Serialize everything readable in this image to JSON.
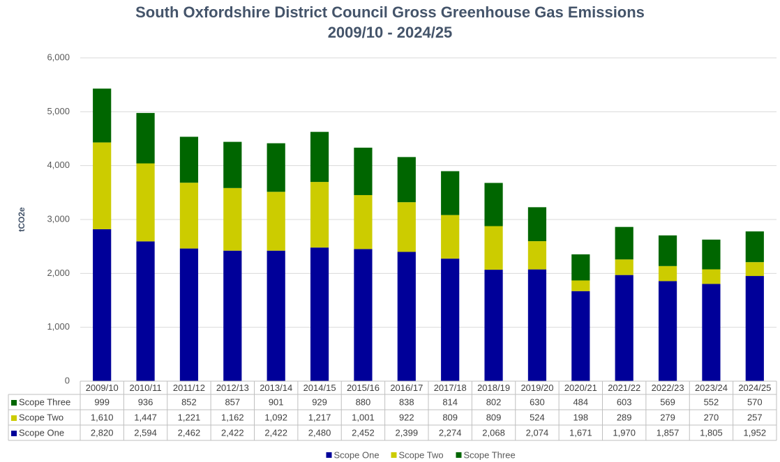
{
  "chart_data": {
    "type": "stacked_bar",
    "title": "South Oxfordshire District Council Gross Greenhouse Gas Emissions",
    "subtitle": "2009/10 - 2024/25",
    "y_label": "tCO2e",
    "categories": [
      "2009/10",
      "2010/11",
      "2011/12",
      "2012/13",
      "2013/14",
      "2014/15",
      "2015/16",
      "2016/17",
      "2017/18",
      "2018/19",
      "2019/20",
      "2020/21",
      "2021/22",
      "2022/23",
      "2023/24",
      "2024/25"
    ],
    "series": [
      {
        "name": "Scope One",
        "color": "#000099",
        "values": [
          2820,
          2594,
          2462,
          2422,
          2422,
          2480,
          2452,
          2399,
          2274,
          2068,
          2074,
          1671,
          1970,
          1857,
          1805,
          1952
        ],
        "value_labels": [
          "2,820",
          "2,594",
          "2,462",
          "2,422",
          "2,422",
          "2,480",
          "2,452",
          "2,399",
          "2,274",
          "2,068",
          "2,074",
          "1,671",
          "1,970",
          "1,857",
          "1,805",
          "1,952"
        ]
      },
      {
        "name": "Scope Two",
        "color": "#cccc00",
        "values": [
          1610,
          1447,
          1221,
          1162,
          1092,
          1217,
          1001,
          922,
          809,
          809,
          524,
          198,
          289,
          279,
          270,
          257
        ],
        "value_labels": [
          "1,610",
          "1,447",
          "1,221",
          "1,162",
          "1,092",
          "1,217",
          "1,001",
          "922",
          "809",
          "809",
          "524",
          "198",
          "289",
          "279",
          "270",
          "257"
        ]
      },
      {
        "name": "Scope Three",
        "color": "#006600",
        "values": [
          999,
          936,
          852,
          857,
          901,
          929,
          880,
          838,
          814,
          802,
          630,
          484,
          603,
          569,
          552,
          570
        ],
        "value_labels": [
          "999",
          "936",
          "852",
          "857",
          "901",
          "929",
          "880",
          "838",
          "814",
          "802",
          "630",
          "484",
          "603",
          "569",
          "552",
          "570"
        ]
      }
    ],
    "ylim": [
      0,
      6000
    ],
    "yticks": [
      0,
      {
        "value": 1000,
        "label": "1,000"
      },
      {
        "value": 2000,
        "label": "2,000"
      },
      {
        "value": 3000,
        "label": "3,000"
      },
      {
        "value": 4000,
        "label": "4,000"
      },
      {
        "value": 5000,
        "label": "5,000"
      },
      {
        "value": 6000,
        "label": "6,000"
      }
    ],
    "grid": true,
    "legend": "bottom"
  }
}
